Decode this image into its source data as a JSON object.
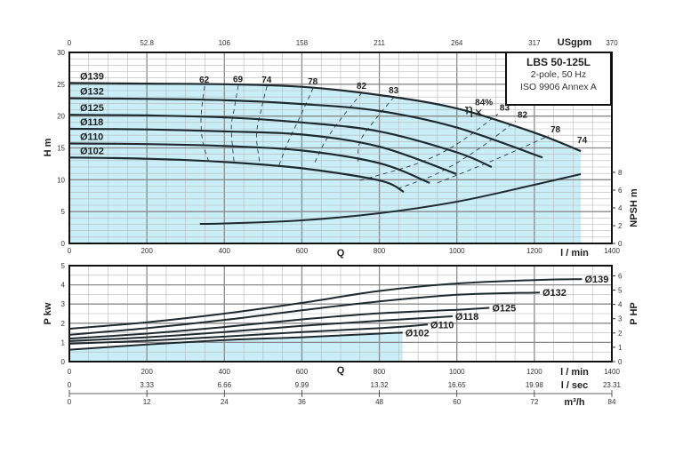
{
  "title_box": {
    "model": "LBS 50-125L",
    "line2": "2-pole, 50 Hz",
    "line3": "ISO 9906 Annex A"
  },
  "colors": {
    "fill": "#c9eef8",
    "curve": "#1f2a30",
    "grid": "#b8b8b8",
    "grid_major": "#8a8a8a"
  },
  "chart_data": [
    {
      "type": "line",
      "name": "head",
      "xlabel": "Q",
      "xunit": "l / min",
      "x_top_unit": "USgpm",
      "ylabel": "H m",
      "y2label": "NPSH m",
      "xlim": [
        0,
        1400
      ],
      "ylim": [
        0,
        30
      ],
      "y2lim": [
        0,
        8
      ],
      "grid": true,
      "x_ticks": [
        0,
        200,
        400,
        600,
        800,
        1000,
        1200,
        1400
      ],
      "x_top_ticks": [
        "0",
        "52.8",
        "106",
        "158",
        "211",
        "264",
        "317",
        "370"
      ],
      "y_ticks": [
        0,
        5,
        10,
        15,
        20,
        25,
        30
      ],
      "y2_ticks": [
        0,
        2,
        4,
        6,
        8
      ],
      "shaded_under": "Ø139",
      "series": [
        {
          "name": "Ø139",
          "points": [
            [
              0,
              25.2
            ],
            [
              200,
              25.1
            ],
            [
              400,
              25.0
            ],
            [
              600,
              24.6
            ],
            [
              800,
              23.3
            ],
            [
              1000,
              21.2
            ],
            [
              1200,
              17.4
            ],
            [
              1320,
              14.5
            ]
          ]
        },
        {
          "name": "Ø132",
          "points": [
            [
              0,
              22.8
            ],
            [
              200,
              22.7
            ],
            [
              400,
              22.5
            ],
            [
              600,
              21.9
            ],
            [
              800,
              20.8
            ],
            [
              1000,
              18.2
            ],
            [
              1221,
              13.5
            ]
          ]
        },
        {
          "name": "Ø125",
          "points": [
            [
              0,
              20.2
            ],
            [
              200,
              20.1
            ],
            [
              400,
              19.8
            ],
            [
              600,
              19.0
            ],
            [
              800,
              17.6
            ],
            [
              1000,
              14.3
            ],
            [
              1090,
              12.0
            ]
          ]
        },
        {
          "name": "Ø118",
          "points": [
            [
              0,
              18.0
            ],
            [
              200,
              17.9
            ],
            [
              400,
              17.6
            ],
            [
              600,
              17.1
            ],
            [
              800,
              15.2
            ],
            [
              999,
              10.9
            ]
          ]
        },
        {
          "name": "Ø110",
          "points": [
            [
              0,
              15.7
            ],
            [
              200,
              15.6
            ],
            [
              400,
              15.3
            ],
            [
              600,
              14.6
            ],
            [
              800,
              12.6
            ],
            [
              930,
              9.5
            ]
          ]
        },
        {
          "name": "Ø102",
          "points": [
            [
              0,
              13.5
            ],
            [
              200,
              13.3
            ],
            [
              400,
              12.8
            ],
            [
              600,
              11.8
            ],
            [
              800,
              9.9
            ],
            [
              863,
              8.1
            ]
          ]
        }
      ],
      "npsh": {
        "points": [
          [
            337,
            2.2
          ],
          [
            400,
            2.25
          ],
          [
            600,
            2.6
          ],
          [
            800,
            3.4
          ],
          [
            1000,
            4.7
          ],
          [
            1200,
            6.6
          ],
          [
            1320,
            7.8
          ]
        ]
      },
      "efficiency_contours": [
        {
          "label": "62",
          "points": [
            [
              349,
              24.7
            ],
            [
              340,
              20
            ],
            [
              344,
              16
            ],
            [
              360,
              12.8
            ]
          ]
        },
        {
          "label": "69",
          "points": [
            [
              436,
              24.8
            ],
            [
              425,
              21
            ],
            [
              418,
              18
            ],
            [
              425,
              12.7
            ]
          ]
        },
        {
          "label": "74",
          "points": [
            [
              510,
              24.7
            ],
            [
              495,
              21
            ],
            [
              483,
              17
            ],
            [
              491,
              12.7
            ]
          ]
        },
        {
          "label": "78",
          "points": [
            [
              629,
              24.4
            ],
            [
              600,
              20.5
            ],
            [
              565,
              16
            ],
            [
              540,
              12.1
            ]
          ]
        },
        {
          "label": "82",
          "points": [
            [
              755,
              23.7
            ],
            [
              700,
              19.5
            ],
            [
              660,
              16
            ],
            [
              631,
              12.4
            ]
          ]
        },
        {
          "label": "83",
          "points": [
            [
              838,
              23.0
            ],
            [
              790,
              19.5
            ],
            [
              750,
              16
            ],
            [
              745,
              12.5
            ]
          ]
        },
        {
          "label": "83",
          "points": [
            [
              750,
              9.9
            ],
            [
              900,
              12.6
            ],
            [
              1000,
              15.6
            ],
            [
              1106,
              20.3
            ]
          ]
        },
        {
          "label": "82",
          "points": [
            [
              847,
              8.6
            ],
            [
              950,
              11.0
            ],
            [
              1050,
              14.6
            ],
            [
              1152,
              19.2
            ]
          ]
        },
        {
          "label": "78",
          "points": [
            [
              950,
              9.5
            ],
            [
              1100,
              13.2
            ],
            [
              1237,
              16.9
            ]
          ]
        },
        {
          "label": "74",
          "points": [
            [
              1306,
              15.2
            ]
          ]
        }
      ],
      "bep": {
        "label": "84%",
        "symbol": "η",
        "point": [
          1040,
          20.6
        ]
      }
    },
    {
      "type": "line",
      "name": "power",
      "xlabel": "Q",
      "ylabel": "P kw",
      "y2label": "P HP",
      "xlim": [
        0,
        1400
      ],
      "ylim": [
        0,
        5
      ],
      "y2lim": [
        0,
        6
      ],
      "grid": true,
      "y_ticks": [
        0,
        1,
        2,
        3,
        4,
        5
      ],
      "y2_ticks": [
        0,
        1,
        2,
        3,
        4,
        5,
        6
      ],
      "shaded_under": "Ø102",
      "series": [
        {
          "name": "Ø139",
          "points": [
            [
              0,
              1.71
            ],
            [
              200,
              2.05
            ],
            [
              400,
              2.5
            ],
            [
              600,
              3.06
            ],
            [
              800,
              3.68
            ],
            [
              1000,
              4.07
            ],
            [
              1200,
              4.25
            ],
            [
              1323,
              4.3
            ]
          ]
        },
        {
          "name": "Ø132",
          "points": [
            [
              0,
              1.4
            ],
            [
              200,
              1.74
            ],
            [
              400,
              2.17
            ],
            [
              600,
              2.67
            ],
            [
              800,
              3.14
            ],
            [
              1000,
              3.48
            ],
            [
              1214,
              3.6
            ]
          ]
        },
        {
          "name": "Ø125",
          "points": [
            [
              0,
              1.2
            ],
            [
              200,
              1.46
            ],
            [
              400,
              1.8
            ],
            [
              600,
              2.2
            ],
            [
              800,
              2.52
            ],
            [
              1000,
              2.7
            ],
            [
              1084,
              2.8
            ]
          ]
        },
        {
          "name": "Ø118",
          "points": [
            [
              0,
              1.07
            ],
            [
              200,
              1.27
            ],
            [
              400,
              1.54
            ],
            [
              600,
              1.86
            ],
            [
              800,
              2.13
            ],
            [
              989,
              2.36
            ]
          ]
        },
        {
          "name": "Ø110",
          "points": [
            [
              0,
              0.93
            ],
            [
              200,
              1.09
            ],
            [
              400,
              1.3
            ],
            [
              600,
              1.54
            ],
            [
              800,
              1.74
            ],
            [
              925,
              1.93
            ]
          ]
        },
        {
          "name": "Ø102",
          "points": [
            [
              0,
              0.62
            ],
            [
              200,
              0.89
            ],
            [
              400,
              1.12
            ],
            [
              600,
              1.27
            ],
            [
              800,
              1.46
            ],
            [
              860,
              1.51
            ]
          ]
        }
      ],
      "x_axes": [
        {
          "unit": "l / min",
          "ticks": [
            "0",
            "200",
            "400",
            "600",
            "800",
            "1000",
            "1200",
            "1400"
          ]
        },
        {
          "unit": "l / sec",
          "ticks": [
            "0",
            "3.33",
            "6.66",
            "9.99",
            "13.32",
            "16.65",
            "19.98",
            "23.31"
          ]
        },
        {
          "unit": "m³/h",
          "ticks": [
            "0",
            "12",
            "24",
            "36",
            "48",
            "60",
            "72",
            "84"
          ]
        }
      ]
    }
  ]
}
